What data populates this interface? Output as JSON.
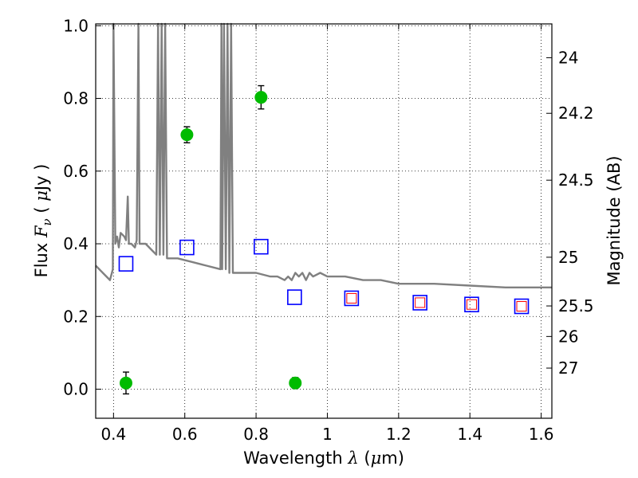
{
  "chart_data": {
    "type": "scatter",
    "title": "",
    "xlabel": "Wavelength  λ (μm)",
    "ylabel": "Flux  F_ν  ( μJy )",
    "y2label": "Magnitude (AB)",
    "xlabel_parts": {
      "text": "Wavelength",
      "symbol": "λ",
      "unit_open": "(",
      "unit_mu": "μ",
      "unit_rest": "m)"
    },
    "ylabel_parts": {
      "text": "Flux",
      "symbol": "F",
      "subscript": "ν",
      "unit_open": "(",
      "unit_mu": "μ",
      "unit_rest": "Jy )"
    },
    "xlim": [
      0.35,
      1.63
    ],
    "ylim": [
      -0.08,
      1.005
    ],
    "grid": true,
    "x_ticks": [
      0.4,
      0.6,
      0.8,
      1.0,
      1.2,
      1.4,
      1.6
    ],
    "x_tick_labels": [
      "0.4",
      "0.6",
      "0.8",
      "1",
      "1.2",
      "1.4",
      "1.6"
    ],
    "y_ticks": [
      0.0,
      0.2,
      0.4,
      0.6,
      0.8,
      1.0
    ],
    "y_tick_labels": [
      "0.0",
      "0.2",
      "0.4",
      "0.6",
      "0.8",
      "1.0"
    ],
    "y2_ticks": [
      {
        "label": "24",
        "flux": 0.912
      },
      {
        "label": "24.2",
        "flux": 0.759
      },
      {
        "label": "24.5",
        "flux": 0.575
      },
      {
        "label": "25",
        "flux": 0.363
      },
      {
        "label": "25.5",
        "flux": 0.229
      },
      {
        "label": "26",
        "flux": 0.145
      },
      {
        "label": "27",
        "flux": 0.058
      }
    ],
    "series": [
      {
        "kind": "line",
        "color": "#808080",
        "points": [
          [
            0.35,
            0.34
          ],
          [
            0.37,
            0.32
          ],
          [
            0.39,
            0.3
          ],
          [
            0.398,
            0.33
          ],
          [
            0.4,
            1.005
          ],
          [
            0.405,
            0.4
          ],
          [
            0.41,
            0.42
          ],
          [
            0.415,
            0.39
          ],
          [
            0.42,
            0.43
          ],
          [
            0.43,
            0.42
          ],
          [
            0.435,
            0.41
          ],
          [
            0.44,
            0.53
          ],
          [
            0.443,
            0.4
          ],
          [
            0.45,
            0.4
          ],
          [
            0.46,
            0.39
          ],
          [
            0.465,
            0.41
          ],
          [
            0.47,
            1.005
          ],
          [
            0.473,
            0.4
          ],
          [
            0.49,
            0.4
          ],
          [
            0.51,
            0.38
          ],
          [
            0.52,
            0.37
          ],
          [
            0.525,
            1.005
          ],
          [
            0.53,
            0.37
          ],
          [
            0.535,
            1.005
          ],
          [
            0.54,
            0.37
          ],
          [
            0.545,
            1.005
          ],
          [
            0.55,
            0.36
          ],
          [
            0.58,
            0.36
          ],
          [
            0.62,
            0.35
          ],
          [
            0.66,
            0.34
          ],
          [
            0.7,
            0.33
          ],
          [
            0.703,
            1.005
          ],
          [
            0.705,
            0.33
          ],
          [
            0.71,
            1.005
          ],
          [
            0.715,
            0.33
          ],
          [
            0.72,
            1.005
          ],
          [
            0.725,
            0.32
          ],
          [
            0.73,
            1.005
          ],
          [
            0.735,
            0.32
          ],
          [
            0.76,
            0.32
          ],
          [
            0.8,
            0.32
          ],
          [
            0.84,
            0.31
          ],
          [
            0.86,
            0.31
          ],
          [
            0.88,
            0.3
          ],
          [
            0.89,
            0.31
          ],
          [
            0.9,
            0.3
          ],
          [
            0.91,
            0.32
          ],
          [
            0.92,
            0.31
          ],
          [
            0.93,
            0.32
          ],
          [
            0.94,
            0.3
          ],
          [
            0.95,
            0.32
          ],
          [
            0.96,
            0.31
          ],
          [
            0.98,
            0.32
          ],
          [
            1.0,
            0.31
          ],
          [
            1.05,
            0.31
          ],
          [
            1.1,
            0.3
          ],
          [
            1.15,
            0.3
          ],
          [
            1.2,
            0.29
          ],
          [
            1.3,
            0.29
          ],
          [
            1.4,
            0.285
          ],
          [
            1.5,
            0.28
          ],
          [
            1.63,
            0.28
          ]
        ]
      },
      {
        "kind": "errorbar",
        "color": "#00bb00",
        "points": [
          {
            "x": 0.435,
            "y": 0.017,
            "err": 0.03
          },
          {
            "x": 0.606,
            "y": 0.7,
            "err": 0.022
          },
          {
            "x": 0.814,
            "y": 0.803,
            "err": 0.032
          },
          {
            "x": 0.91,
            "y": 0.017,
            "err": 0.015
          }
        ]
      },
      {
        "kind": "square",
        "color": "#0000ff",
        "points": [
          {
            "x": 0.435,
            "y": 0.345
          },
          {
            "x": 0.606,
            "y": 0.39
          },
          {
            "x": 0.814,
            "y": 0.392
          },
          {
            "x": 0.908,
            "y": 0.253
          },
          {
            "x": 1.068,
            "y": 0.25
          },
          {
            "x": 1.26,
            "y": 0.238
          },
          {
            "x": 1.405,
            "y": 0.233
          },
          {
            "x": 1.545,
            "y": 0.228
          }
        ]
      },
      {
        "kind": "square-small",
        "color": "#ff0000",
        "points": [
          {
            "x": 1.068,
            "y": 0.25
          },
          {
            "x": 1.26,
            "y": 0.238
          },
          {
            "x": 1.405,
            "y": 0.233
          },
          {
            "x": 1.545,
            "y": 0.228
          }
        ]
      }
    ]
  }
}
